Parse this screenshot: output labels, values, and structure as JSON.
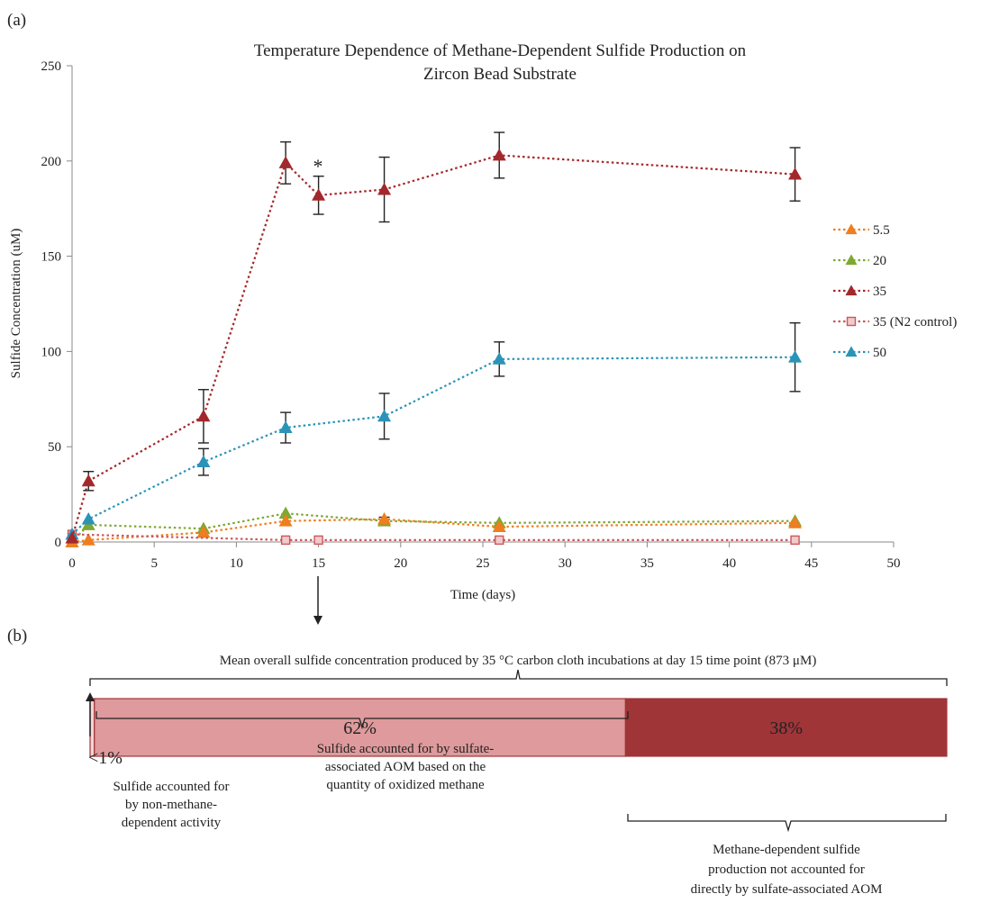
{
  "panel_a": {
    "label": "(a)",
    "star": "*"
  },
  "chart_data": {
    "type": "line",
    "title": "Temperature Dependence of Methane-Dependent Sulfide Production on Zircon Bead Substrate",
    "title_lines": [
      "Temperature Dependence of Methane-Dependent Sulfide Production on",
      "Zircon Bead Substrate"
    ],
    "xlabel": "Time (days)",
    "ylabel": "Sulfide Concentration (uM)",
    "xlim": [
      0,
      50
    ],
    "ylim": [
      0,
      250
    ],
    "xticks": [
      0,
      5,
      10,
      15,
      20,
      25,
      30,
      35,
      40,
      45,
      50
    ],
    "yticks": [
      0,
      50,
      100,
      150,
      200,
      250
    ],
    "grid": false,
    "legend_position": "right",
    "series": [
      {
        "name": "5.5",
        "color": "#f07d1e",
        "marker": "triangle",
        "x": [
          0,
          1,
          8,
          13,
          19,
          26,
          44
        ],
        "y": [
          0,
          1,
          5,
          11,
          12,
          8,
          10
        ],
        "err": [
          0,
          0,
          0,
          0,
          0,
          0,
          0
        ]
      },
      {
        "name": "20",
        "color": "#7fa832",
        "marker": "triangle",
        "x": [
          0,
          1,
          8,
          13,
          19,
          26,
          44
        ],
        "y": [
          0,
          9,
          7,
          15,
          11,
          10,
          11
        ],
        "err": [
          0,
          0,
          0,
          0,
          2,
          0,
          0
        ]
      },
      {
        "name": "35",
        "color": "#a3282b",
        "marker": "triangle",
        "x": [
          0,
          1,
          8,
          13,
          15,
          19,
          26,
          44
        ],
        "y": [
          2,
          32,
          66,
          199,
          182,
          185,
          203,
          193
        ],
        "err": [
          0,
          5,
          14,
          11,
          10,
          17,
          12,
          14
        ]
      },
      {
        "name": "35 (N2 control)",
        "color": "#c9585c",
        "marker": "square",
        "x": [
          0,
          13,
          15,
          26,
          44
        ],
        "y": [
          4,
          1,
          1,
          1,
          1
        ],
        "err": [
          0,
          0,
          0,
          0,
          0
        ]
      },
      {
        "name": "50",
        "color": "#2a93b8",
        "marker": "triangle",
        "x": [
          0,
          1,
          8,
          13,
          19,
          26,
          44
        ],
        "y": [
          4,
          12,
          42,
          60,
          66,
          96,
          97
        ],
        "err": [
          0,
          0,
          7,
          8,
          12,
          9,
          18
        ]
      }
    ]
  },
  "panel_b": {
    "label": "(b)",
    "header": "Mean overall sulfide concentration produced by 35 °C carbon cloth incubations at day 15 time point (873 μM)",
    "bar": [
      {
        "label": "",
        "fraction": 0.005,
        "color": "#f6d4d6"
      },
      {
        "label": "62%",
        "fraction": 0.62,
        "color": "#de9a9c"
      },
      {
        "label": "38%",
        "fraction": 0.375,
        "color": "#a03538"
      }
    ],
    "note_small_pct": "<1%",
    "note_small": [
      "Sulfide accounted for",
      "by non-methane-",
      "dependent activity"
    ],
    "note_mid": [
      "Sulfide accounted for by sulfate-",
      "associated AOM based on the",
      "quantity of oxidized methane"
    ],
    "note_right": [
      "Methane-dependent sulfide",
      "production not accounted for",
      "directly by sulfate-associated AOM"
    ]
  }
}
